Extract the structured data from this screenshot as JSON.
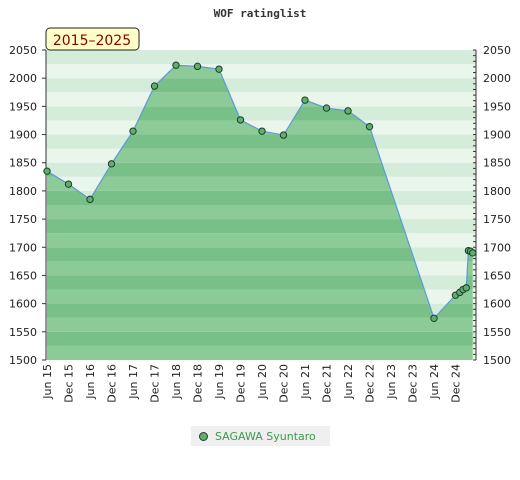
{
  "chart_data": {
    "type": "area",
    "title": "WOF ratinglist",
    "badge": "2015–2025",
    "ylim": [
      1500,
      2050
    ],
    "yticks": [
      1500,
      1550,
      1600,
      1650,
      1700,
      1750,
      1800,
      1850,
      1900,
      1950,
      2000,
      2050
    ],
    "xtick_labels": [
      "Jun 15",
      "Dec 15",
      "Jun 16",
      "Dec 16",
      "Jun 17",
      "Dec 17",
      "Jun 18",
      "Dec 18",
      "Jun 19",
      "Dec 19",
      "Jun 20",
      "Dec 20",
      "Jun 21",
      "Dec 21",
      "Jun 22",
      "Dec 22",
      "Jun 23",
      "Dec 23",
      "Jun 24",
      "Dec 24"
    ],
    "series": [
      {
        "name": "SAGAWA Syuntaro",
        "color": "#5fae6e",
        "points": [
          [
            0,
            1835
          ],
          [
            1,
            1812
          ],
          [
            2,
            1785
          ],
          [
            3,
            1848
          ],
          [
            4,
            1906
          ],
          [
            5,
            1986
          ],
          [
            6,
            2023
          ],
          [
            7,
            2021
          ],
          [
            8,
            2016
          ],
          [
            9,
            1926
          ],
          [
            10,
            1906
          ],
          [
            11,
            1899
          ],
          [
            12,
            1961
          ],
          [
            13,
            1947
          ],
          [
            14,
            1942
          ],
          [
            15,
            1914
          ],
          [
            18,
            1574
          ],
          [
            19.0,
            1615
          ],
          [
            19.2,
            1620
          ],
          [
            19.35,
            1625
          ],
          [
            19.5,
            1628
          ],
          [
            19.6,
            1694
          ],
          [
            19.7,
            1693
          ],
          [
            19.8,
            1690
          ]
        ]
      }
    ],
    "legend": "bottom-center",
    "grid": true
  }
}
